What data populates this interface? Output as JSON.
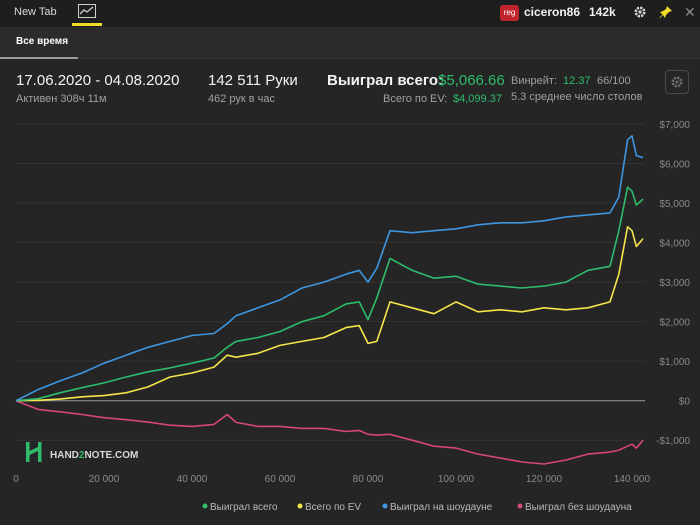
{
  "topbar": {
    "tab_new": "New Tab",
    "reg_badge": "reg",
    "username": "ciceron86",
    "stack": "142k",
    "icons": [
      "chart-tab-icon",
      "gear-icon",
      "pin-icon",
      "close-icon"
    ]
  },
  "subtab": {
    "label": "Все время"
  },
  "stats": {
    "date_range": "17.06.2020 - 04.08.2020",
    "active": "Активен 308ч 11м",
    "hands": "142 511 Руки",
    "hands_per_hour": "462 рук в час",
    "won_total_label": "Выиграл всего:",
    "won_total_value": "$5,066.66",
    "ev_label": "Всего по EV:",
    "ev_value": "$4,099.37",
    "winrate_label": "Винрейт:",
    "winrate_value": "12.37",
    "winrate_hands": "66/100",
    "tables_avg": "5.3 среднее число столов"
  },
  "watermark": {
    "part1": "HAND",
    "part2": "2",
    "part3": "NOTE.COM"
  },
  "colors": {
    "green": "#2ebc6b",
    "yellow": "#f5e64a",
    "blue": "#3e96e0",
    "pink": "#d6457c"
  },
  "chart_data": {
    "type": "line",
    "xlim": [
      0,
      142511
    ],
    "ylim": [
      -1500,
      7000
    ],
    "x_ticks": [
      0,
      20000,
      40000,
      60000,
      80000,
      100000,
      120000,
      140000
    ],
    "x_tick_labels": [
      "0",
      "20 000",
      "40 000",
      "60 000",
      "80 000",
      "100 000",
      "120 000",
      "140 000"
    ],
    "y_ticks": [
      7000,
      6000,
      5000,
      4000,
      3000,
      2000,
      1000,
      0,
      -1000
    ],
    "y_tick_labels": [
      "$7,000",
      "$6,000",
      "$5,000",
      "$4,000",
      "$3,000",
      "$2,000",
      "$1,000",
      "$0",
      "-$1,000"
    ],
    "legend_position": "bottom-right",
    "series": [
      {
        "name": "Выиграл всего",
        "color": "#2ebc6b",
        "x": [
          0,
          5000,
          10000,
          15000,
          20000,
          25000,
          30000,
          35000,
          40000,
          45000,
          48000,
          50000,
          55000,
          60000,
          65000,
          70000,
          75000,
          78000,
          80000,
          82000,
          85000,
          90000,
          95000,
          100000,
          105000,
          110000,
          115000,
          120000,
          125000,
          130000,
          135000,
          137000,
          139000,
          140000,
          141000,
          142511
        ],
        "values": [
          0,
          50,
          200,
          330,
          450,
          600,
          730,
          830,
          950,
          1080,
          1350,
          1500,
          1600,
          1750,
          2000,
          2150,
          2450,
          2500,
          2050,
          2600,
          3600,
          3300,
          3100,
          3150,
          2950,
          2900,
          2850,
          2900,
          3000,
          3300,
          3400,
          4300,
          5400,
          5300,
          4950,
          5100
        ]
      },
      {
        "name": "Всего по EV",
        "color": "#f5e64a",
        "x": [
          0,
          5000,
          10000,
          15000,
          20000,
          25000,
          30000,
          35000,
          40000,
          45000,
          48000,
          50000,
          55000,
          60000,
          65000,
          70000,
          75000,
          78000,
          80000,
          82000,
          85000,
          90000,
          95000,
          100000,
          105000,
          110000,
          115000,
          120000,
          125000,
          130000,
          135000,
          137000,
          139000,
          140000,
          141000,
          142511
        ],
        "values": [
          0,
          10,
          40,
          100,
          130,
          200,
          350,
          600,
          700,
          850,
          1150,
          1100,
          1200,
          1400,
          1500,
          1600,
          1850,
          1900,
          1450,
          1500,
          2500,
          2350,
          2200,
          2500,
          2250,
          2300,
          2250,
          2350,
          2300,
          2350,
          2500,
          3200,
          4400,
          4300,
          3900,
          4100
        ]
      },
      {
        "name": "Выиграл на шоудауне",
        "color": "#3e96e0",
        "x": [
          0,
          5000,
          10000,
          15000,
          20000,
          25000,
          30000,
          35000,
          40000,
          45000,
          48000,
          50000,
          55000,
          60000,
          65000,
          70000,
          75000,
          78000,
          80000,
          82000,
          85000,
          90000,
          95000,
          100000,
          105000,
          110000,
          115000,
          120000,
          125000,
          130000,
          135000,
          137000,
          139000,
          140000,
          141000,
          142511
        ],
        "values": [
          0,
          280,
          500,
          700,
          950,
          1150,
          1350,
          1500,
          1650,
          1700,
          1950,
          2150,
          2350,
          2550,
          2850,
          3000,
          3200,
          3300,
          3000,
          3350,
          4300,
          4250,
          4300,
          4350,
          4450,
          4500,
          4500,
          4550,
          4650,
          4700,
          4750,
          5150,
          6600,
          6700,
          6200,
          6150
        ]
      },
      {
        "name": "Выиграл без шоудауна",
        "color": "#d6457c",
        "x": [
          0,
          5000,
          10000,
          15000,
          20000,
          25000,
          30000,
          35000,
          40000,
          45000,
          48000,
          50000,
          55000,
          60000,
          65000,
          70000,
          75000,
          78000,
          80000,
          82000,
          85000,
          90000,
          95000,
          100000,
          105000,
          110000,
          115000,
          120000,
          125000,
          130000,
          135000,
          137000,
          139000,
          140000,
          141000,
          142511
        ],
        "values": [
          0,
          -220,
          -280,
          -350,
          -430,
          -480,
          -540,
          -620,
          -650,
          -600,
          -350,
          -550,
          -650,
          -650,
          -700,
          -700,
          -780,
          -750,
          -850,
          -870,
          -850,
          -1000,
          -1150,
          -1200,
          -1350,
          -1450,
          -1550,
          -1600,
          -1500,
          -1350,
          -1300,
          -1250,
          -1150,
          -1100,
          -1200,
          -1000
        ]
      }
    ]
  }
}
